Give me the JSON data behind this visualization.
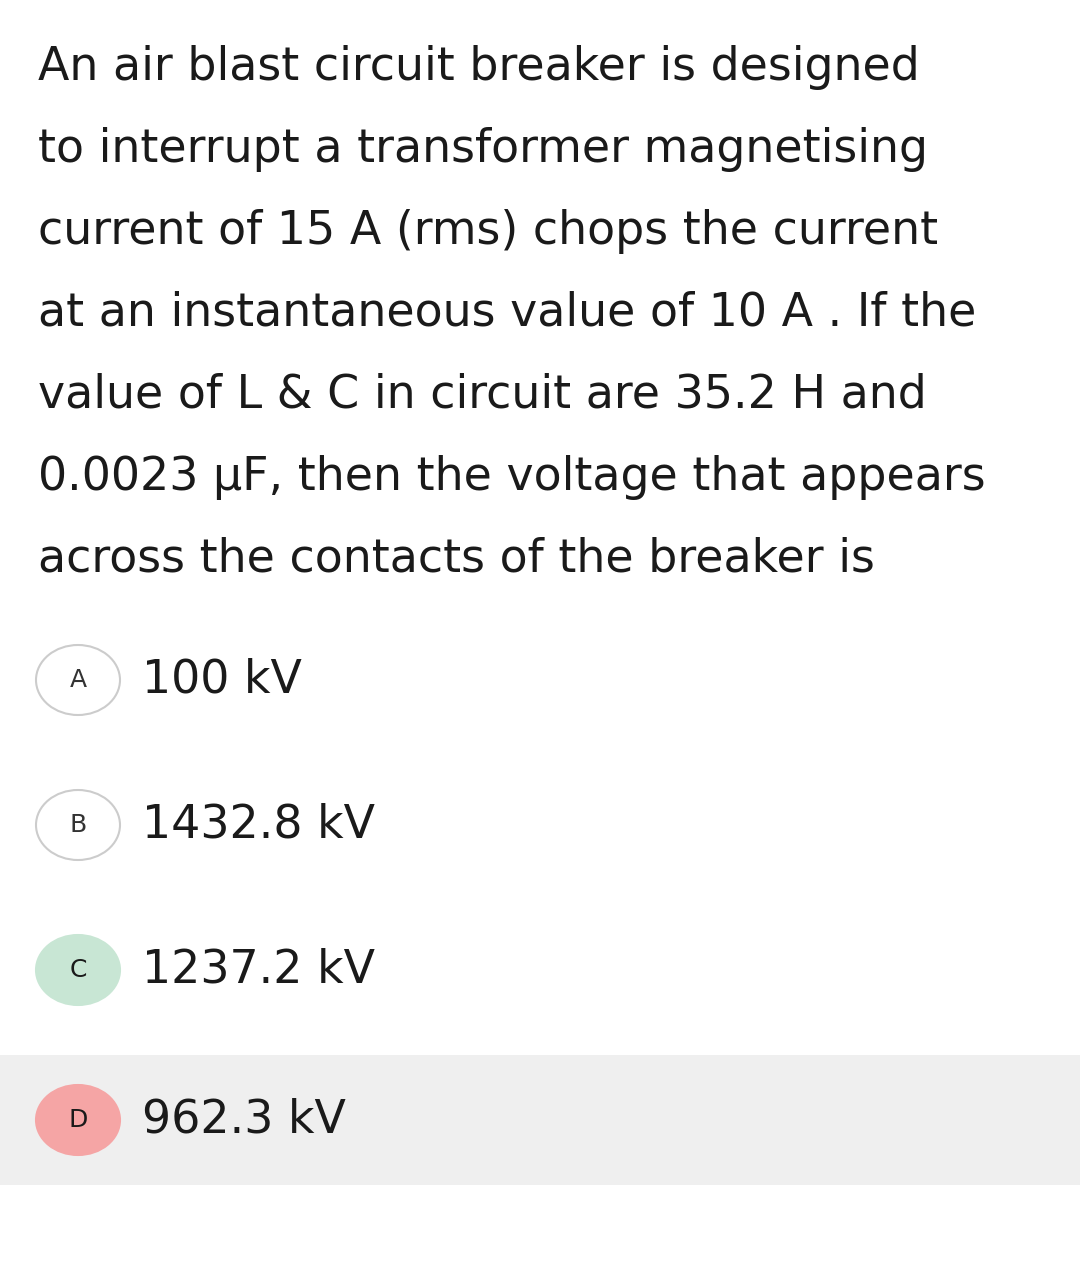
{
  "background_color": "#ffffff",
  "question_text_lines": [
    "An air blast circuit breaker is designed",
    "to interrupt a transformer magnetising",
    "current of 15 A (rms) chops the current",
    "at an instantaneous value of 10 A . If the",
    "value of L & C in circuit are 35.2 H and",
    "0.0023 μF, then the voltage that appears",
    "across the contacts of the breaker is"
  ],
  "options": [
    {
      "label": "A",
      "text": "100 kV",
      "circle_bg": "#ffffff",
      "circle_border": "#cccccc",
      "label_color": "#333333",
      "row_bg": "#ffffff"
    },
    {
      "label": "B",
      "text": "1432.8 kV",
      "circle_bg": "#ffffff",
      "circle_border": "#cccccc",
      "label_color": "#333333",
      "row_bg": "#ffffff"
    },
    {
      "label": "C",
      "text": "1237.2 kV",
      "circle_bg": "#c8e6d4",
      "circle_border": "#c8e6d4",
      "label_color": "#1a1a1a",
      "row_bg": "#ffffff"
    },
    {
      "label": "D",
      "text": "962.3 kV",
      "circle_bg": "#f5a5a5",
      "circle_border": "#f5a5a5",
      "label_color": "#1a1a1a",
      "row_bg": "#efefef"
    }
  ],
  "question_fontsize": 33,
  "option_fontsize": 33,
  "label_fontsize": 18,
  "question_color": "#1a1a1a",
  "option_text_color": "#1a1a1a",
  "fig_width": 10.8,
  "fig_height": 12.7
}
